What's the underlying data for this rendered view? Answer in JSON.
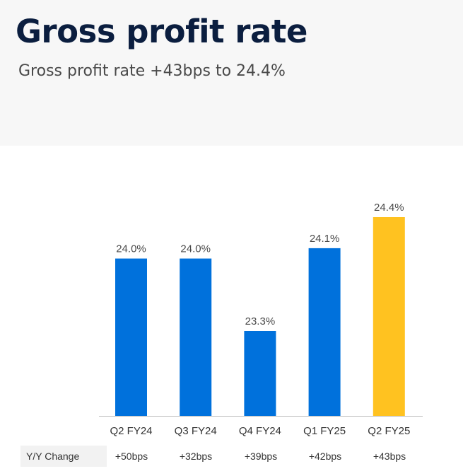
{
  "header": {
    "title": "Gross profit rate",
    "subtitle": "Gross profit rate +43bps to 24.4%"
  },
  "chart_data": {
    "type": "bar",
    "title": "Gross profit rate",
    "categories": [
      "Q2 FY24",
      "Q3 FY24",
      "Q4 FY24",
      "Q1 FY25",
      "Q2 FY25"
    ],
    "values": [
      24.0,
      24.0,
      23.3,
      24.1,
      24.4
    ],
    "data_labels": [
      "24.0%",
      "24.0%",
      "23.3%",
      "24.1%",
      "24.4%"
    ],
    "colors": [
      "#0071dc",
      "#0071dc",
      "#0071dc",
      "#0071dc",
      "#ffc220"
    ],
    "xlabel": "",
    "ylabel": "",
    "grid": false,
    "legend": "none"
  },
  "yoy": {
    "label": "Y/Y Change",
    "values": [
      "+50bps",
      "+32bps",
      "+39bps",
      "+42bps",
      "+43bps"
    ]
  }
}
